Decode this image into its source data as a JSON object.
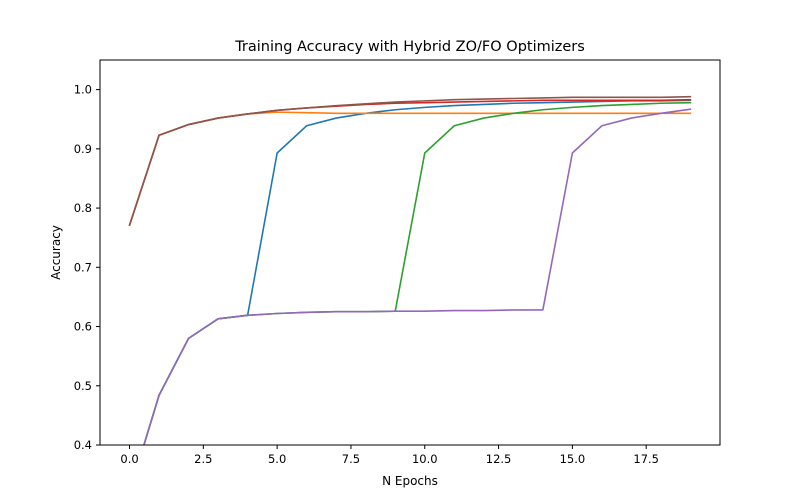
{
  "chart_data": {
    "type": "line",
    "title": "Training Accuracy with Hybrid ZO/FO Optimizers",
    "xlabel": "N Epochs",
    "ylabel": "Accuracy",
    "xlim": [
      -1.0,
      20.0
    ],
    "ylim": [
      0.4,
      1.05
    ],
    "x_ticks": [
      0.0,
      2.5,
      5.0,
      7.5,
      10.0,
      12.5,
      15.0,
      17.5
    ],
    "x_tick_labels": [
      "0.0",
      "2.5",
      "5.0",
      "7.5",
      "10.0",
      "12.5",
      "15.0",
      "17.5"
    ],
    "y_ticks": [
      0.4,
      0.5,
      0.6,
      0.7,
      0.8,
      0.9,
      1.0
    ],
    "y_tick_labels": [
      "0.4",
      "0.5",
      "0.6",
      "0.7",
      "0.8",
      "0.9",
      "1.0"
    ],
    "grid": false,
    "legend": "none",
    "series": [
      {
        "color": "#1f77b4",
        "x": [
          0,
          1,
          2,
          3,
          4,
          5,
          6,
          7,
          8,
          9,
          10,
          11,
          12,
          13,
          14,
          15,
          16,
          17,
          18,
          19
        ],
        "y": [
          0.32,
          0.484,
          0.58,
          0.613,
          0.619,
          0.893,
          0.939,
          0.952,
          0.96,
          0.966,
          0.97,
          0.973,
          0.975,
          0.977,
          0.978,
          0.979,
          0.98,
          0.981,
          0.981,
          0.982
        ]
      },
      {
        "color": "#ff7f0e",
        "x": [
          0,
          1,
          2,
          3,
          4,
          5,
          6,
          7,
          8,
          9,
          10,
          11,
          12,
          13,
          14,
          15,
          16,
          17,
          18,
          19
        ],
        "y": [
          0.771,
          0.923,
          0.941,
          0.952,
          0.959,
          0.962,
          0.961,
          0.96,
          0.96,
          0.96,
          0.96,
          0.96,
          0.96,
          0.96,
          0.96,
          0.96,
          0.96,
          0.96,
          0.96,
          0.96
        ]
      },
      {
        "color": "#2ca02c",
        "x": [
          0,
          1,
          2,
          3,
          4,
          5,
          6,
          7,
          8,
          9,
          10,
          11,
          12,
          13,
          14,
          15,
          16,
          17,
          18,
          19
        ],
        "y": [
          0.32,
          0.484,
          0.58,
          0.613,
          0.619,
          0.622,
          0.624,
          0.625,
          0.625,
          0.626,
          0.893,
          0.939,
          0.952,
          0.96,
          0.966,
          0.97,
          0.973,
          0.975,
          0.977,
          0.978
        ]
      },
      {
        "color": "#d62728",
        "x": [
          0,
          1,
          2,
          3,
          4,
          5,
          6,
          7,
          8,
          9,
          10,
          11,
          12,
          13,
          14,
          15,
          16,
          17,
          18,
          19
        ],
        "y": [
          0.771,
          0.923,
          0.941,
          0.952,
          0.959,
          0.965,
          0.969,
          0.972,
          0.975,
          0.977,
          0.978,
          0.979,
          0.98,
          0.981,
          0.982,
          0.982,
          0.982,
          0.982,
          0.982,
          0.983
        ]
      },
      {
        "color": "#9467bd",
        "x": [
          0,
          1,
          2,
          3,
          4,
          5,
          6,
          7,
          8,
          9,
          10,
          11,
          12,
          13,
          14,
          15,
          16,
          17,
          18,
          19
        ],
        "y": [
          0.32,
          0.484,
          0.58,
          0.613,
          0.619,
          0.622,
          0.624,
          0.625,
          0.625,
          0.626,
          0.626,
          0.627,
          0.627,
          0.628,
          0.628,
          0.893,
          0.939,
          0.952,
          0.96,
          0.967
        ]
      },
      {
        "color": "#8c564b",
        "x": [
          0,
          1,
          2,
          3,
          4,
          5,
          6,
          7,
          8,
          9,
          10,
          11,
          12,
          13,
          14,
          15,
          16,
          17,
          18,
          19
        ],
        "y": [
          0.771,
          0.923,
          0.941,
          0.952,
          0.959,
          0.965,
          0.969,
          0.973,
          0.976,
          0.979,
          0.981,
          0.983,
          0.984,
          0.985,
          0.986,
          0.987,
          0.987,
          0.987,
          0.987,
          0.988
        ]
      }
    ]
  }
}
